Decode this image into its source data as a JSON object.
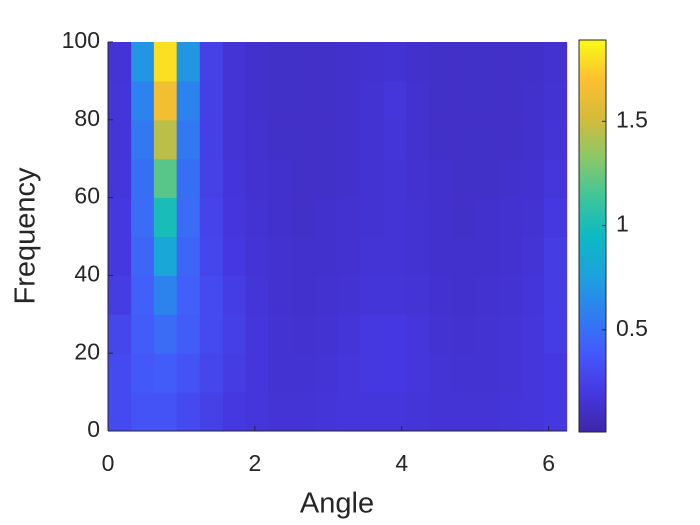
{
  "chart_data": {
    "type": "heatmap",
    "xlabel": "Angle",
    "ylabel": "Frequency",
    "x": [
      0.16,
      0.47,
      0.78,
      1.09,
      1.41,
      1.72,
      2.03,
      2.34,
      2.66,
      2.97,
      3.28,
      3.59,
      3.91,
      4.22,
      4.53,
      4.84,
      5.16,
      5.47,
      5.78,
      6.09
    ],
    "y": [
      5,
      15,
      25,
      35,
      45,
      55,
      65,
      75,
      85,
      95
    ],
    "values": [
      [
        0.3,
        0.35,
        0.35,
        0.3,
        0.25,
        0.2,
        0.18,
        0.16,
        0.16,
        0.17,
        0.18,
        0.18,
        0.18,
        0.17,
        0.16,
        0.16,
        0.16,
        0.17,
        0.18,
        0.2
      ],
      [
        0.3,
        0.38,
        0.4,
        0.35,
        0.28,
        0.22,
        0.18,
        0.15,
        0.15,
        0.16,
        0.18,
        0.2,
        0.2,
        0.18,
        0.16,
        0.15,
        0.15,
        0.16,
        0.18,
        0.2
      ],
      [
        0.28,
        0.4,
        0.48,
        0.4,
        0.3,
        0.24,
        0.18,
        0.15,
        0.14,
        0.15,
        0.17,
        0.2,
        0.2,
        0.18,
        0.15,
        0.14,
        0.15,
        0.16,
        0.18,
        0.22
      ],
      [
        0.22,
        0.42,
        0.6,
        0.42,
        0.3,
        0.22,
        0.17,
        0.14,
        0.13,
        0.14,
        0.15,
        0.17,
        0.17,
        0.16,
        0.14,
        0.13,
        0.14,
        0.15,
        0.17,
        0.22
      ],
      [
        0.2,
        0.45,
        0.8,
        0.45,
        0.28,
        0.2,
        0.16,
        0.14,
        0.13,
        0.13,
        0.14,
        0.16,
        0.16,
        0.15,
        0.13,
        0.13,
        0.13,
        0.14,
        0.16,
        0.22
      ],
      [
        0.2,
        0.48,
        1.0,
        0.48,
        0.26,
        0.18,
        0.15,
        0.13,
        0.12,
        0.13,
        0.14,
        0.15,
        0.16,
        0.15,
        0.13,
        0.12,
        0.13,
        0.14,
        0.15,
        0.2
      ],
      [
        0.18,
        0.5,
        1.2,
        0.5,
        0.25,
        0.17,
        0.14,
        0.13,
        0.12,
        0.12,
        0.13,
        0.15,
        0.16,
        0.14,
        0.13,
        0.12,
        0.12,
        0.13,
        0.14,
        0.18
      ],
      [
        0.17,
        0.55,
        1.45,
        0.55,
        0.24,
        0.16,
        0.14,
        0.12,
        0.12,
        0.12,
        0.13,
        0.15,
        0.17,
        0.14,
        0.12,
        0.12,
        0.12,
        0.12,
        0.13,
        0.16
      ],
      [
        0.17,
        0.6,
        1.65,
        0.6,
        0.24,
        0.16,
        0.13,
        0.12,
        0.12,
        0.12,
        0.13,
        0.15,
        0.18,
        0.14,
        0.12,
        0.12,
        0.12,
        0.12,
        0.13,
        0.15
      ],
      [
        0.16,
        0.7,
        1.8,
        0.7,
        0.25,
        0.16,
        0.13,
        0.12,
        0.12,
        0.12,
        0.13,
        0.14,
        0.15,
        0.13,
        0.12,
        0.12,
        0.12,
        0.12,
        0.12,
        0.14
      ]
    ],
    "xlim": [
      0,
      6.25
    ],
    "ylim": [
      0,
      100
    ],
    "xticks": [
      0,
      2,
      4,
      6
    ],
    "yticks": [
      0,
      20,
      40,
      60,
      80,
      100
    ],
    "clim": [
      0.01,
      1.89
    ],
    "cticks": [
      0.5,
      1,
      1.5
    ],
    "colormap": [
      "#3e26a8",
      "#4538e0",
      "#4459fb",
      "#2f7ef0",
      "#1ca2dc",
      "#0cb9c3",
      "#3fc59a",
      "#8ac866",
      "#d4bb3a",
      "#fdc030",
      "#f9fb15"
    ]
  }
}
